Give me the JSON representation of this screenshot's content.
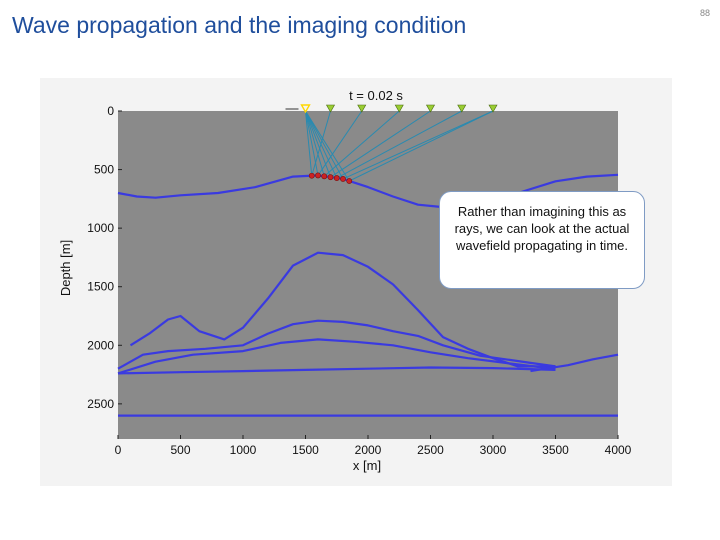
{
  "slide": {
    "title": "Wave propagation and the imaging condition",
    "number": "88"
  },
  "figure": {
    "time_label": "t = 0.02 s",
    "ylabel": "Depth [m]",
    "xlabel": "x [m]",
    "x_ticks": [
      "0",
      "500",
      "1000",
      "1500",
      "2000",
      "2500",
      "3000",
      "3500",
      "4000"
    ],
    "y_ticks": [
      "0",
      "500",
      "1000",
      "1500",
      "2000",
      "2500"
    ],
    "x_range": [
      0,
      4000
    ],
    "y_range": [
      0,
      2800
    ],
    "background_color": "#8a8a8a",
    "reflector_color": "#3a3ae0",
    "ray_color": "#2a8ab0",
    "receiver_color": "#9acd32",
    "source_color": "#ffd700",
    "reflection_point_color": "#cc2222",
    "source": {
      "x": 1500,
      "depth": 0
    },
    "receivers_x": [
      1700,
      1950,
      2250,
      2500,
      2750,
      3000
    ],
    "reflection_points_x": [
      1550,
      1600,
      1650,
      1700,
      1750,
      1800,
      1850
    ],
    "reflectors": [
      {
        "name": "reflector-1",
        "points": [
          [
            0,
            700
          ],
          [
            150,
            730
          ],
          [
            300,
            740
          ],
          [
            500,
            720
          ],
          [
            800,
            700
          ],
          [
            1100,
            650
          ],
          [
            1400,
            560
          ],
          [
            1600,
            550
          ],
          [
            1800,
            580
          ],
          [
            2000,
            650
          ],
          [
            2200,
            730
          ],
          [
            2400,
            800
          ],
          [
            2600,
            820
          ],
          [
            2900,
            790
          ],
          [
            3200,
            700
          ],
          [
            3500,
            600
          ],
          [
            3750,
            560
          ],
          [
            4000,
            545
          ]
        ]
      },
      {
        "name": "reflector-2",
        "points": [
          [
            100,
            2000
          ],
          [
            250,
            1900
          ],
          [
            400,
            1780
          ],
          [
            500,
            1750
          ],
          [
            650,
            1880
          ],
          [
            850,
            1950
          ],
          [
            1000,
            1850
          ],
          [
            1200,
            1600
          ],
          [
            1400,
            1320
          ],
          [
            1600,
            1210
          ],
          [
            1800,
            1230
          ],
          [
            2000,
            1330
          ],
          [
            2200,
            1480
          ],
          [
            2400,
            1700
          ],
          [
            2600,
            1930
          ],
          [
            2800,
            2030
          ],
          [
            3000,
            2110
          ],
          [
            3200,
            2180
          ],
          [
            3500,
            2180
          ]
        ]
      },
      {
        "name": "reflector-3",
        "points": [
          [
            0,
            2200
          ],
          [
            200,
            2080
          ],
          [
            400,
            2050
          ],
          [
            700,
            2030
          ],
          [
            1000,
            2000
          ],
          [
            1200,
            1900
          ],
          [
            1400,
            1820
          ],
          [
            1600,
            1790
          ],
          [
            1800,
            1800
          ],
          [
            2000,
            1830
          ],
          [
            2200,
            1880
          ],
          [
            2400,
            1920
          ],
          [
            2600,
            2000
          ],
          [
            2900,
            2090
          ],
          [
            3100,
            2120
          ],
          [
            3300,
            2150
          ],
          [
            3500,
            2180
          ]
        ]
      },
      {
        "name": "reflector-4",
        "points": [
          [
            0,
            2240
          ],
          [
            300,
            2140
          ],
          [
            600,
            2080
          ],
          [
            1000,
            2050
          ],
          [
            1300,
            1980
          ],
          [
            1600,
            1950
          ],
          [
            1900,
            1970
          ],
          [
            2200,
            2000
          ],
          [
            2500,
            2060
          ],
          [
            2800,
            2110
          ],
          [
            3100,
            2150
          ],
          [
            3400,
            2190
          ],
          [
            3500,
            2200
          ]
        ]
      },
      {
        "name": "reflector-5",
        "points": [
          [
            0,
            2240
          ],
          [
            500,
            2230
          ],
          [
            1000,
            2220
          ],
          [
            1500,
            2210
          ],
          [
            2000,
            2200
          ],
          [
            2500,
            2190
          ],
          [
            3000,
            2195
          ],
          [
            3500,
            2210
          ]
        ]
      },
      {
        "name": "reflector-6",
        "points": [
          [
            3300,
            2220
          ],
          [
            3600,
            2170
          ],
          [
            3800,
            2120
          ],
          [
            4000,
            2080
          ]
        ]
      },
      {
        "name": "reflector-7",
        "points": [
          [
            0,
            2600
          ],
          [
            1000,
            2600
          ],
          [
            2000,
            2600
          ],
          [
            3000,
            2600
          ],
          [
            4000,
            2600
          ]
        ]
      }
    ]
  },
  "callout": {
    "text": "Rather than imagining this as rays, we can look at the actual wavefield propagating in time."
  }
}
